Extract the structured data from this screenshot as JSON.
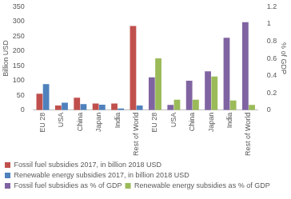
{
  "chart_data": {
    "type": "bar",
    "categories": [
      "EU 28",
      "USA",
      "China",
      "Japan",
      "India",
      "Rest of World",
      "EU 28",
      "USA",
      "China",
      "Japan",
      "India",
      "Rest of World"
    ],
    "series": [
      {
        "name": "Fossil fuel subsidies 2017, in billion 2018 USD",
        "color": "#c0504d",
        "values": [
          55,
          15,
          42,
          22,
          22,
          285,
          null,
          null,
          null,
          null,
          null,
          null
        ]
      },
      {
        "name": "Renewable energy subsidies 2017, in billion 2018 USD",
        "color": "#4f81bd",
        "values": [
          88,
          25,
          20,
          18,
          5,
          15,
          null,
          null,
          null,
          null,
          null,
          null
        ]
      },
      {
        "name": "Fossil fuel subsidies as % of GDP",
        "color": "#8064a2",
        "axis": "y2",
        "values": [
          null,
          null,
          null,
          null,
          null,
          null,
          0.38,
          0.06,
          0.34,
          0.45,
          0.84,
          1.02
        ]
      },
      {
        "name": "Renewable energy subsidies as % of GDP",
        "color": "#9bbb59",
        "axis": "y2",
        "values": [
          null,
          null,
          null,
          null,
          null,
          null,
          0.6,
          0.12,
          0.12,
          0.39,
          0.11,
          0.06
        ]
      }
    ],
    "ylabel": "Billion USD",
    "y2label": "% of GDP",
    "ylim": [
      0,
      350
    ],
    "yticks": [
      0,
      50,
      100,
      150,
      200,
      250,
      300,
      350
    ],
    "y2lim": [
      0,
      1.2
    ],
    "y2ticks": [
      0,
      0.2,
      0.4,
      0.6,
      0.8,
      1,
      1.2
    ],
    "grid": false,
    "legend": "bottom"
  }
}
